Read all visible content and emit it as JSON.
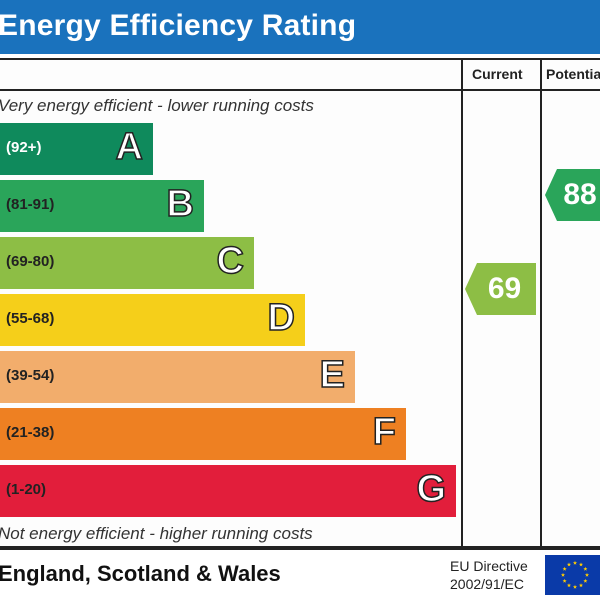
{
  "header": {
    "title": "Energy Efficiency Rating"
  },
  "columns": {
    "current": "Current",
    "potential": "Potential"
  },
  "notes": {
    "top": "Very energy efficient - lower running costs",
    "bottom": "Not energy efficient - higher running costs"
  },
  "bands": [
    {
      "range": "(92+)",
      "letter": "A",
      "color": "#0f8a5c"
    },
    {
      "range": "(81-91)",
      "letter": "B",
      "color": "#2aa55a"
    },
    {
      "range": "(69-80)",
      "letter": "C",
      "color": "#8dbe45"
    },
    {
      "range": "(55-68)",
      "letter": "D",
      "color": "#f5cf1a"
    },
    {
      "range": "(39-54)",
      "letter": "E",
      "color": "#f2ad6c"
    },
    {
      "range": "(21-38)",
      "letter": "F",
      "color": "#ee8022"
    },
    {
      "range": "(1-20)",
      "letter": "G",
      "color": "#e21e3b"
    }
  ],
  "ratings": {
    "current": {
      "value": "69",
      "color": "#8dbe45"
    },
    "potential": {
      "value": "88",
      "color": "#2aa55a"
    }
  },
  "footer": {
    "region": "England, Scotland & Wales",
    "directive_line1": "EU Directive",
    "directive_line2": "2002/91/EC",
    "flag_color": "#0a3aa8",
    "star_color": "#ffcc00"
  }
}
